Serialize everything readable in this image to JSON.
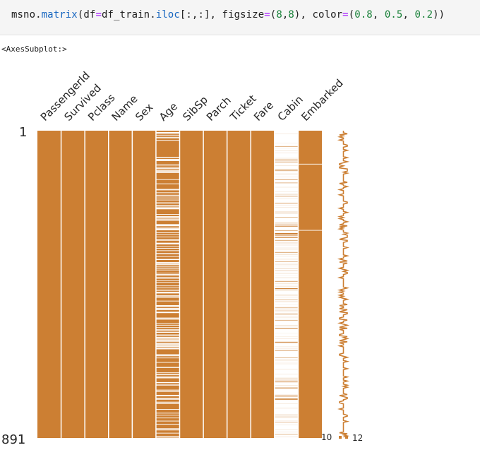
{
  "code_cell": {
    "tokens": [
      {
        "text": "msno",
        "cls": ""
      },
      {
        "text": ".",
        "cls": ""
      },
      {
        "text": "matrix",
        "cls": "tk-fn"
      },
      {
        "text": "(df",
        "cls": ""
      },
      {
        "text": "=",
        "cls": "tk-op"
      },
      {
        "text": "df_train",
        "cls": ""
      },
      {
        "text": ".",
        "cls": ""
      },
      {
        "text": "iloc",
        "cls": "tk-fn"
      },
      {
        "text": "[:,:], figsize",
        "cls": ""
      },
      {
        "text": "=",
        "cls": "tk-op"
      },
      {
        "text": "(",
        "cls": ""
      },
      {
        "text": "8",
        "cls": "tk-num"
      },
      {
        "text": ",",
        "cls": ""
      },
      {
        "text": "8",
        "cls": "tk-num"
      },
      {
        "text": "), color",
        "cls": ""
      },
      {
        "text": "=",
        "cls": "tk-op"
      },
      {
        "text": "(",
        "cls": ""
      },
      {
        "text": "0.8",
        "cls": "tk-num"
      },
      {
        "text": ", ",
        "cls": ""
      },
      {
        "text": "0.5",
        "cls": "tk-num"
      },
      {
        "text": ", ",
        "cls": ""
      },
      {
        "text": "0.2",
        "cls": "tk-num"
      },
      {
        "text": "))",
        "cls": ""
      }
    ]
  },
  "output_text": "<AxesSubplot:>",
  "chart_data": {
    "type": "heatmap",
    "columns": [
      "PassengerId",
      "Survived",
      "Pclass",
      "Name",
      "Sex",
      "Age",
      "SibSp",
      "Parch",
      "Ticket",
      "Fare",
      "Cabin",
      "Embarked"
    ],
    "nrows": 891,
    "row_labels": [
      "1",
      "891"
    ],
    "missing_counts": [
      0,
      0,
      0,
      0,
      0,
      177,
      0,
      0,
      0,
      0,
      687,
      2
    ],
    "sparkline": {
      "min_label": "10",
      "max_label": "12",
      "min": 10,
      "max": 12
    },
    "fill_color": "#cc7f33",
    "gap_color": "#ffffff"
  }
}
